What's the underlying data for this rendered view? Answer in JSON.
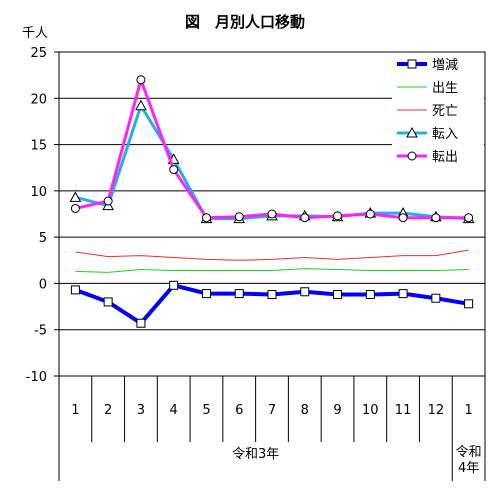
{
  "chart_data": {
    "type": "line",
    "title": "図　月別人口移動",
    "ylabel": "千人",
    "ylim": [
      -10,
      25
    ],
    "yticks": [
      -10,
      -5,
      0,
      5,
      10,
      15,
      20,
      25
    ],
    "grid": true,
    "legend_position": "top-right",
    "categories": [
      "1",
      "2",
      "3",
      "4",
      "5",
      "6",
      "7",
      "8",
      "9",
      "10",
      "11",
      "12",
      "1"
    ],
    "year_groups": [
      {
        "label": "令和3年",
        "from": 0,
        "to": 11
      },
      {
        "label": "令和\n4年",
        "from": 12,
        "to": 12
      }
    ],
    "series": [
      {
        "name": "増減",
        "color": "#0000ff",
        "marker": "square",
        "width": 4,
        "values": [
          -0.7,
          -2.0,
          -4.3,
          -0.2,
          -1.1,
          -1.1,
          -1.2,
          -0.9,
          -1.2,
          -1.2,
          -1.1,
          -1.6,
          -2.2
        ]
      },
      {
        "name": "出生",
        "color": "#22cc22",
        "marker": "none",
        "width": 1,
        "values": [
          1.3,
          1.2,
          1.5,
          1.4,
          1.4,
          1.4,
          1.4,
          1.6,
          1.5,
          1.4,
          1.4,
          1.4,
          1.5
        ]
      },
      {
        "name": "死亡",
        "color": "#dd3333",
        "marker": "none",
        "width": 1,
        "values": [
          3.4,
          2.9,
          3.0,
          2.8,
          2.6,
          2.5,
          2.6,
          2.8,
          2.6,
          2.8,
          3.0,
          3.0,
          3.6
        ]
      },
      {
        "name": "転入",
        "color": "#22b0e0",
        "marker": "triangle",
        "width": 3,
        "values": [
          9.3,
          8.4,
          19.2,
          13.4,
          7.0,
          7.0,
          7.3,
          7.3,
          7.2,
          7.6,
          7.6,
          7.2,
          7.0
        ]
      },
      {
        "name": "転出",
        "color": "#ff22ff",
        "marker": "circle",
        "width": 3,
        "values": [
          8.1,
          8.9,
          22.0,
          12.3,
          7.1,
          7.2,
          7.5,
          7.1,
          7.3,
          7.5,
          7.1,
          7.1,
          7.1
        ]
      }
    ]
  }
}
